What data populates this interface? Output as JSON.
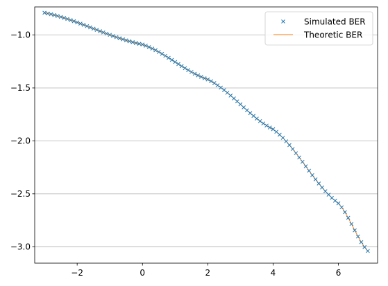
{
  "chart_data": {
    "type": "line",
    "title": "",
    "xlabel": "",
    "ylabel": "",
    "xlim": [
      -3.3,
      7.2
    ],
    "ylim": [
      -3.155,
      -0.735
    ],
    "grid": {
      "x": false,
      "y": true
    },
    "legend_position": "top-right",
    "x_ticks": [
      -2,
      0,
      2,
      4,
      6
    ],
    "x_tick_labels": [
      "−2",
      "0",
      "2",
      "4",
      "6"
    ],
    "y_ticks": [
      -1.0,
      -1.5,
      -2.0,
      -2.5,
      -3.0
    ],
    "y_tick_labels": [
      "−1.0",
      "−1.5",
      "−2.0",
      "−2.5",
      "−3.0"
    ],
    "series": [
      {
        "name": "Simulated BER",
        "style": "markers",
        "marker": "x",
        "color": "#1f77b4",
        "x_start": -3.0,
        "x_end": 6.9,
        "x_step": 0.1,
        "y_source": "sampled from the theoretic curve"
      },
      {
        "name": "Theoretic BER",
        "style": "line",
        "color": "#ff7f0e",
        "x_start": -3.0,
        "x_end": 6.9,
        "x_step": 0.1,
        "y_points": [
          {
            "x": -3.0,
            "y": -0.79
          },
          {
            "x": 0.0,
            "y": -1.09
          },
          {
            "x": 2.0,
            "y": -1.42
          },
          {
            "x": 4.0,
            "y": -1.89
          },
          {
            "x": 6.0,
            "y": -2.59
          },
          {
            "x": 6.9,
            "y": -3.04
          }
        ]
      }
    ]
  },
  "legend": {
    "entries": [
      "Simulated BER",
      "Theoretic BER"
    ]
  }
}
